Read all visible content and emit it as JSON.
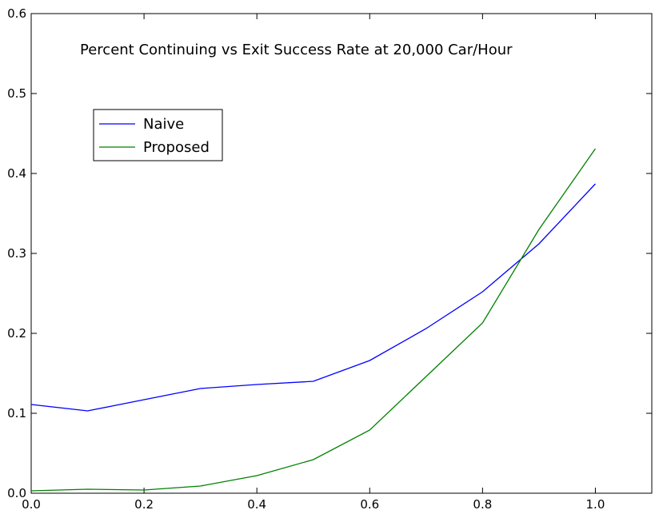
{
  "chart_data": {
    "type": "line",
    "title": "Percent Continuing vs Exit Success Rate at 20,000 Car/Hour",
    "xlabel": "",
    "ylabel": "",
    "xlim": [
      0.0,
      1.1
    ],
    "ylim": [
      0.0,
      0.6
    ],
    "xticks": [
      "0.0",
      "0.2",
      "0.4",
      "0.6",
      "0.8",
      "1.0"
    ],
    "yticks": [
      "0.0",
      "0.1",
      "0.2",
      "0.3",
      "0.4",
      "0.5",
      "0.6"
    ],
    "grid": false,
    "legend_position": "upper-left",
    "x": [
      0.0,
      0.1,
      0.2,
      0.3,
      0.4,
      0.5,
      0.6,
      0.7,
      0.8,
      0.9,
      1.0
    ],
    "series": [
      {
        "name": "Naive",
        "color": "#0000ff",
        "values": [
          0.111,
          0.103,
          0.117,
          0.131,
          0.136,
          0.14,
          0.166,
          0.206,
          0.252,
          0.312,
          0.387
        ]
      },
      {
        "name": "Proposed",
        "color": "#008000",
        "values": [
          0.003,
          0.005,
          0.004,
          0.009,
          0.022,
          0.042,
          0.079,
          0.146,
          0.213,
          0.33,
          0.431
        ]
      }
    ]
  }
}
